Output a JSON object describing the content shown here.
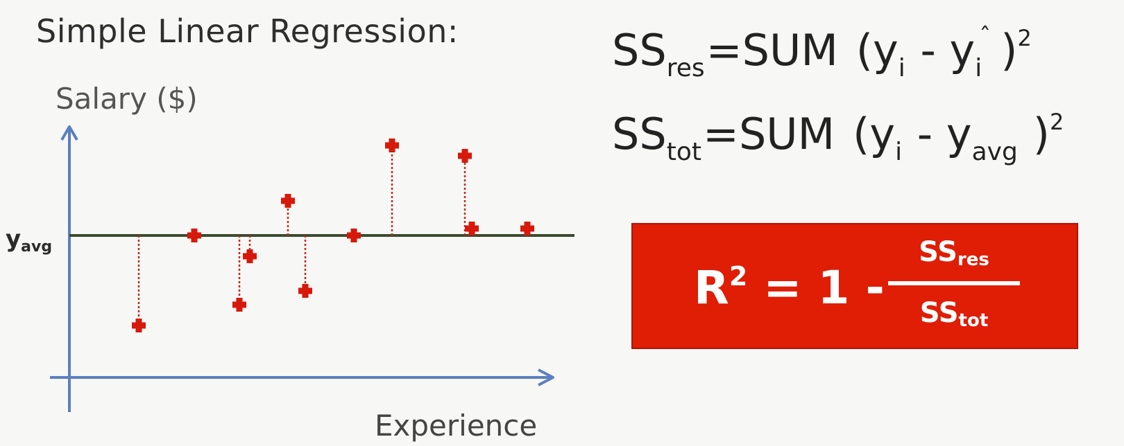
{
  "title": "Simple Linear Regression:",
  "axes": {
    "y_label": "Salary ($)",
    "x_label": "Experience",
    "avg_label_main": "y",
    "avg_label_sub": "avg"
  },
  "formulas": {
    "ss_res": {
      "lhs": "SS",
      "lhs_sub": "res",
      "eq": "=",
      "op": "SUM",
      "expr_open": "(y",
      "i_sub": "i",
      "minus": " - ",
      "rhs_var": "y",
      "hat": "ˆ",
      "rhs_sub": "i",
      "close": ")",
      "power": "2"
    },
    "ss_tot": {
      "lhs": "SS",
      "lhs_sub": "tot",
      "eq": "=",
      "op": "SUM",
      "expr_open": "(y",
      "i_sub": "i",
      "minus": " - ",
      "rhs_var": "y",
      "rhs_sub": "avg",
      "close": ")",
      "power": "2"
    }
  },
  "r2_box": {
    "lhs": "R",
    "power": "2",
    "rest": " = 1 - ",
    "num": "SS",
    "num_sub": "res",
    "den": "SS",
    "den_sub": "tot"
  },
  "colors": {
    "axis": "#5b7fbf",
    "avg_line": "#3d4a2e",
    "point": "#d6190b",
    "residual": "#c0291a",
    "box": "#e01d05"
  },
  "chart_data": {
    "type": "scatter",
    "description_values_unitless": true,
    "y_avg": 0,
    "points": [
      {
        "x": 1.0,
        "y": -1.3
      },
      {
        "x": 1.8,
        "y": 0.0
      },
      {
        "x": 2.45,
        "y": -1.0
      },
      {
        "x": 2.6,
        "y": -0.3
      },
      {
        "x": 3.15,
        "y": 0.5
      },
      {
        "x": 3.4,
        "y": -0.8
      },
      {
        "x": 4.1,
        "y": 0.0
      },
      {
        "x": 4.65,
        "y": 1.3
      },
      {
        "x": 5.7,
        "y": 1.15
      },
      {
        "x": 5.8,
        "y": 0.1
      },
      {
        "x": 6.6,
        "y": 0.1
      }
    ],
    "xlim": [
      0,
      7
    ],
    "ylim": [
      -2,
      2
    ]
  }
}
